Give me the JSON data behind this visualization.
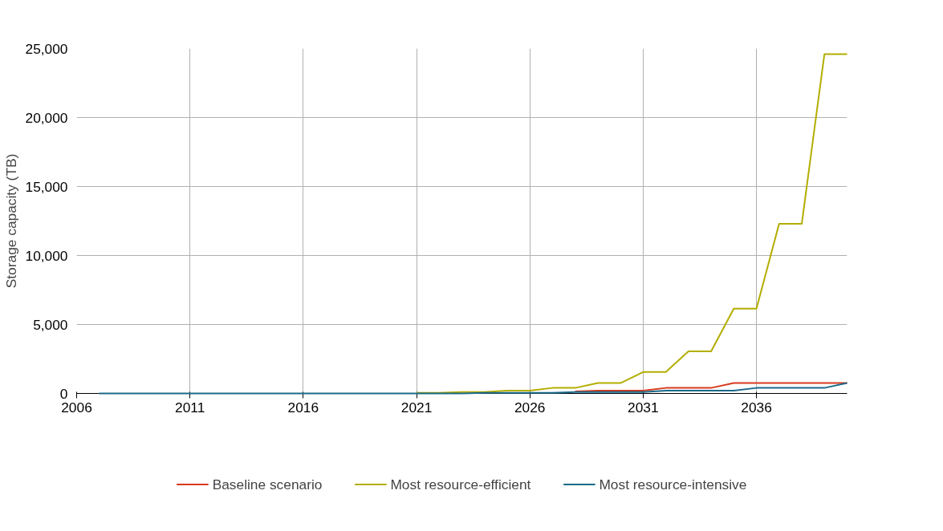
{
  "chart_data": {
    "type": "line",
    "ylabel": "Storage capacity (TB)",
    "x": [
      2007,
      2008,
      2009,
      2010,
      2011,
      2012,
      2013,
      2014,
      2015,
      2016,
      2017,
      2018,
      2019,
      2020,
      2021,
      2022,
      2023,
      2024,
      2025,
      2026,
      2027,
      2028,
      2029,
      2030,
      2031,
      2032,
      2033,
      2034,
      2035,
      2036,
      2037,
      2038,
      2039,
      2040
    ],
    "series": [
      {
        "name": "Baseline scenario",
        "color": "#d73a1e",
        "values": [
          null,
          null,
          null,
          null,
          null,
          null,
          null,
          null,
          null,
          null,
          null,
          null,
          null,
          null,
          null,
          null,
          null,
          null,
          null,
          null,
          null,
          150,
          200,
          200,
          200,
          400,
          400,
          400,
          750,
          750,
          750,
          750,
          750,
          750
        ]
      },
      {
        "name": "Most resource-efficient",
        "color": "#b3ad00",
        "values": [
          null,
          null,
          null,
          null,
          null,
          null,
          null,
          null,
          null,
          null,
          null,
          null,
          null,
          null,
          50,
          50,
          100,
          100,
          200,
          200,
          400,
          400,
          750,
          750,
          1550,
          1550,
          3050,
          3050,
          6150,
          6150,
          12300,
          12300,
          24600,
          24600
        ]
      },
      {
        "name": "Most resource-intensive",
        "color": "#1b6a8a",
        "values": [
          0,
          0,
          0,
          0,
          0,
          0,
          0,
          0,
          0,
          0,
          0,
          0,
          0,
          0,
          0,
          0,
          0,
          50,
          50,
          50,
          50,
          100,
          100,
          100,
          100,
          200,
          200,
          200,
          200,
          400,
          400,
          400,
          400,
          750
        ]
      }
    ],
    "xlim": [
      2006,
      2040
    ],
    "xticks": [
      2006,
      2011,
      2016,
      2021,
      2026,
      2031,
      2036
    ],
    "ylim": [
      0,
      25000
    ],
    "yticks": [
      {
        "value": 0,
        "label": "0"
      },
      {
        "value": 5000,
        "label": "5,000"
      },
      {
        "value": 10000,
        "label": "10,000"
      },
      {
        "value": 15000,
        "label": "15,000"
      },
      {
        "value": 20000,
        "label": "20,000"
      },
      {
        "value": 25000,
        "label": "25,000"
      }
    ],
    "grid": true,
    "legend": "bottom",
    "marker": "none",
    "line_style": "solid"
  }
}
